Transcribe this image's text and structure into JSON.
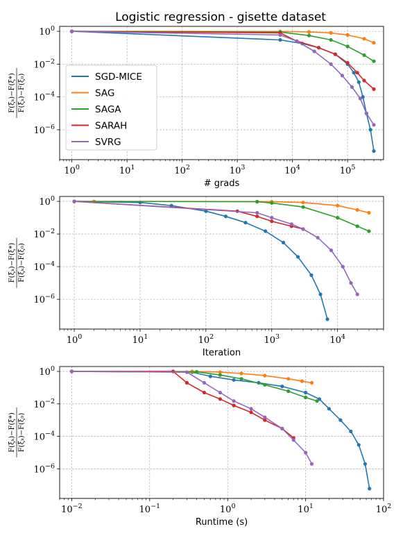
{
  "title": "Logistic regression - gisette dataset",
  "colors": {
    "SGD-MICE": "#1f77b4",
    "SAG": "#ff7f0e",
    "SAGA": "#2ca02c",
    "SARAH": "#d62728",
    "SVRG": "#9467bd"
  },
  "legend": [
    "SGD-MICE",
    "SAG",
    "SAGA",
    "SARAH",
    "SVRG"
  ],
  "chart_data": [
    {
      "type": "line",
      "xlabel": "# grads",
      "ylabel": "F(ξk) − F(ξ*) / F(ξ0) − F(ξ*)",
      "xscale": "log",
      "yscale": "log",
      "xlim": [
        0.6,
        450000
      ],
      "ylim": [
        1.5e-08,
        2
      ],
      "xticks": [
        1,
        10,
        100,
        1000,
        10000,
        100000
      ],
      "xtick_labels": [
        "10^0",
        "10^1",
        "10^2",
        "10^3",
        "10^4",
        "10^5"
      ],
      "yticks": [
        1,
        0.01,
        0.0001,
        1e-06
      ],
      "ytick_labels": [
        "10^0",
        "10^-2",
        "10^-4",
        "10^-6"
      ],
      "grid": true,
      "legend_position": "left",
      "series": [
        {
          "name": "SGD-MICE",
          "x": [
            1,
            6000,
            15000,
            30000,
            60000,
            100000,
            130000,
            160000,
            190000,
            220000,
            260000,
            300000
          ],
          "y": [
            1,
            0.3,
            0.18,
            0.1,
            0.04,
            0.01,
            0.003,
            0.0008,
            0.0001,
            1e-05,
            1e-06,
            5e-08
          ]
        },
        {
          "name": "SAG",
          "x": [
            1,
            6000,
            20000,
            50000,
            100000,
            200000,
            300000
          ],
          "y": [
            1,
            0.98,
            0.92,
            0.8,
            0.6,
            0.35,
            0.2
          ]
        },
        {
          "name": "SAGA",
          "x": [
            1,
            6000,
            20000,
            50000,
            100000,
            200000,
            300000
          ],
          "y": [
            1,
            0.9,
            0.55,
            0.3,
            0.12,
            0.035,
            0.015
          ]
        },
        {
          "name": "SARAH",
          "x": [
            1,
            6000,
            12000,
            30000,
            60000,
            100000,
            150000,
            200000,
            300000
          ],
          "y": [
            1,
            0.8,
            0.25,
            0.1,
            0.04,
            0.012,
            0.003,
            0.001,
            0.0003
          ]
        },
        {
          "name": "SVRG",
          "x": [
            1,
            6000,
            12000,
            25000,
            50000,
            80000,
            120000,
            170000,
            220000,
            300000
          ],
          "y": [
            1,
            0.6,
            0.25,
            0.06,
            0.01,
            0.002,
            0.0004,
            8e-05,
            1e-05,
            2e-06
          ]
        }
      ]
    },
    {
      "type": "line",
      "xlabel": "Iteration",
      "ylabel": "F(ξk) − F(ξ*) / F(ξ0) − F(ξ*)",
      "xscale": "log",
      "yscale": "log",
      "xlim": [
        0.6,
        50000
      ],
      "ylim": [
        1.5e-08,
        2
      ],
      "xticks": [
        1,
        10,
        100,
        1000,
        10000
      ],
      "xtick_labels": [
        "10^0",
        "10^1",
        "10^2",
        "10^3",
        "10^4"
      ],
      "yticks": [
        1,
        0.01,
        0.0001,
        1e-06
      ],
      "ytick_labels": [
        "10^0",
        "10^-2",
        "10^-4",
        "10^-6"
      ],
      "grid": true,
      "series": [
        {
          "name": "SGD-MICE",
          "x": [
            1,
            10,
            30,
            100,
            200,
            400,
            800,
            1500,
            2500,
            4000,
            5500,
            7000
          ],
          "y": [
            1,
            0.85,
            0.55,
            0.25,
            0.12,
            0.05,
            0.015,
            0.003,
            0.0004,
            3e-05,
            2e-06,
            6e-08
          ]
        },
        {
          "name": "SAG",
          "x": [
            1,
            2,
            600,
            1000,
            3000,
            10000,
            20000,
            30000
          ],
          "y": [
            1,
            1,
            0.98,
            0.95,
            0.85,
            0.55,
            0.3,
            0.2
          ]
        },
        {
          "name": "SAGA",
          "x": [
            1,
            600,
            1000,
            3000,
            10000,
            20000,
            30000
          ],
          "y": [
            1,
            0.95,
            0.8,
            0.45,
            0.1,
            0.03,
            0.015
          ]
        },
        {
          "name": "SARAH",
          "x": [
            1,
            300,
            600,
            1000,
            2000,
            3000
          ],
          "y": [
            1,
            0.25,
            0.12,
            0.06,
            0.03,
            0.02
          ]
        },
        {
          "name": "SVRG",
          "x": [
            1,
            600,
            1000,
            2000,
            3000,
            5000,
            8000,
            12000,
            16000,
            20000
          ],
          "y": [
            1,
            0.2,
            0.1,
            0.04,
            0.02,
            0.006,
            0.001,
            0.0001,
            1e-05,
            2e-06
          ]
        }
      ]
    },
    {
      "type": "line",
      "xlabel": "Runtime (s)",
      "ylabel": "F(ξk) − F(ξ*) / F(ξ0) − F(ξ*)",
      "xscale": "log",
      "yscale": "log",
      "xlim": [
        0.007,
        100
      ],
      "ylim": [
        1.5e-08,
        2
      ],
      "xticks": [
        0.01,
        0.1,
        1,
        10,
        100
      ],
      "xtick_labels": [
        "10^-2",
        "10^-1",
        "10^0",
        "10^1",
        "10^2"
      ],
      "yticks": [
        1,
        0.01,
        0.0001,
        1e-06
      ],
      "ytick_labels": [
        "10^0",
        "10^-2",
        "10^-4",
        "10^-6"
      ],
      "grid": true,
      "series": [
        {
          "name": "SGD-MICE",
          "x": [
            0.01,
            0.35,
            0.6,
            1.2,
            2.5,
            5,
            10,
            15,
            20,
            28,
            38,
            48,
            58,
            66
          ],
          "y": [
            1,
            0.9,
            0.5,
            0.3,
            0.2,
            0.12,
            0.05,
            0.02,
            0.005,
            0.001,
            0.0002,
            3e-05,
            2e-06,
            6e-08
          ]
        },
        {
          "name": "SAG",
          "x": [
            0.01,
            0.35,
            0.8,
            1.5,
            3,
            6,
            9,
            12
          ],
          "y": [
            1,
            1,
            0.9,
            0.75,
            0.55,
            0.35,
            0.25,
            0.2
          ]
        },
        {
          "name": "SAGA",
          "x": [
            0.01,
            0.4,
            0.8,
            1.5,
            3,
            6,
            10,
            14
          ],
          "y": [
            1,
            0.95,
            0.6,
            0.35,
            0.15,
            0.06,
            0.025,
            0.015
          ]
        },
        {
          "name": "SARAH",
          "x": [
            0.01,
            0.2,
            0.3,
            0.5,
            0.8,
            1.2,
            2,
            3,
            5,
            7
          ],
          "y": [
            1,
            1,
            0.2,
            0.05,
            0.02,
            0.008,
            0.003,
            0.001,
            0.0003,
            8e-05
          ]
        },
        {
          "name": "SVRG",
          "x": [
            0.01,
            0.3,
            0.5,
            0.8,
            1.2,
            2,
            3,
            5,
            7,
            10,
            12
          ],
          "y": [
            1,
            0.9,
            0.2,
            0.05,
            0.015,
            0.005,
            0.0015,
            0.0003,
            6e-05,
            1e-05,
            2e-06
          ]
        }
      ]
    }
  ]
}
